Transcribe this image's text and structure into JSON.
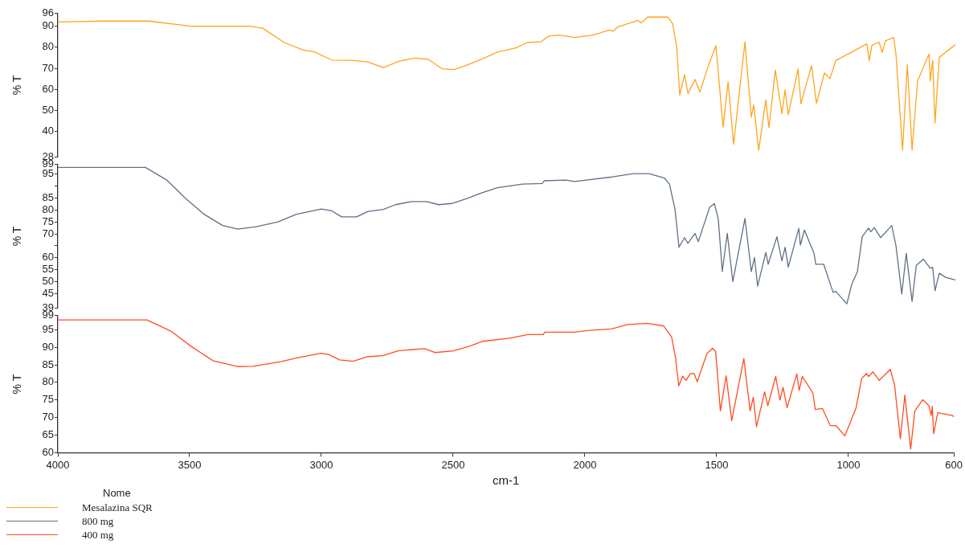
{
  "chart_data": [
    {
      "type": "line",
      "ylabel": "% T",
      "xlim": [
        4000,
        600
      ],
      "ylim": [
        28,
        96
      ],
      "yticks": [
        28,
        40,
        50,
        60,
        70,
        80,
        90,
        96
      ],
      "tick_labels": "y",
      "legend": "bottom left",
      "legend_title": "Nome",
      "series": [
        {
          "name": "Mesalazina SQR",
          "color": "#ffa51c",
          "x": [
            4000,
            3833,
            3656,
            3495,
            3271,
            3224,
            3142,
            3072,
            3026,
            2962,
            2886,
            2825,
            2767,
            2709,
            2651,
            2597,
            2545,
            2499,
            2451,
            2393,
            2335,
            2265,
            2222,
            2170,
            2140,
            2100,
            2042,
            1972,
            1911,
            1896,
            1878,
            1802,
            1790,
            1766,
            1690,
            1671,
            1656,
            1644,
            1626,
            1613,
            1586,
            1568,
            1531,
            1507,
            1480,
            1461,
            1440,
            1397,
            1373,
            1364,
            1345,
            1318,
            1306,
            1282,
            1257,
            1245,
            1233,
            1196,
            1185,
            1145,
            1126,
            1096,
            1075,
            1053,
            935,
            926,
            916,
            889,
            877,
            865,
            834,
            825,
            800,
            782,
            764,
            743,
            700,
            695,
            686,
            677,
            661,
            600
          ],
          "values": [
            92,
            92.4,
            92.4,
            90,
            90,
            89,
            82.2,
            78.7,
            77.7,
            73.9,
            73.8,
            73,
            70.3,
            73.3,
            74.8,
            74.3,
            69.8,
            69.4,
            71.5,
            74.4,
            77.7,
            79.7,
            82.2,
            82.6,
            85.3,
            85.8,
            84.6,
            85.8,
            88.2,
            87.6,
            89.7,
            92.7,
            91.5,
            94.3,
            94.3,
            91.2,
            80.5,
            57.3,
            67,
            58,
            64.7,
            58.8,
            72.9,
            80.7,
            42.1,
            63.5,
            34,
            82.6,
            46.8,
            52.7,
            31.2,
            55,
            41.8,
            69.2,
            48.4,
            59.8,
            48,
            69.7,
            53.2,
            71.3,
            53.4,
            67.8,
            65.1,
            73.7,
            81.6,
            73.7,
            81,
            82.4,
            77.5,
            83,
            84.6,
            76.8,
            31.2,
            71.7,
            31.2,
            64,
            76.8,
            64,
            73.7,
            44.1,
            75.2,
            81.2
          ]
        }
      ]
    },
    {
      "type": "line",
      "ylabel": "% T",
      "xlim": [
        4000,
        600
      ],
      "ylim": [
        39,
        99
      ],
      "yticks": [
        39,
        45,
        50,
        55,
        60,
        {
          "value": 65,
          "label": null
        },
        70,
        75,
        80,
        85,
        {
          "value": 90,
          "label": null
        },
        95,
        99
      ],
      "tick_labels": "y",
      "legend": "bottom left",
      "series": [
        {
          "name": "800 mg",
          "color": "#5f7186",
          "x": [
            4000,
            3668,
            3586,
            3516,
            3446,
            3376,
            3318,
            3248,
            3166,
            3096,
            3002,
            2962,
            2925,
            2868,
            2825,
            2767,
            2721,
            2661,
            2603,
            2557,
            2508,
            2451,
            2393,
            2335,
            2241,
            2165,
            2158,
            2076,
            2042,
            1902,
            1820,
            1760,
            1702,
            1683,
            1662,
            1647,
            1626,
            1613,
            1586,
            1574,
            1531,
            1513,
            1498,
            1483,
            1464,
            1443,
            1397,
            1373,
            1361,
            1349,
            1318,
            1309,
            1276,
            1257,
            1245,
            1233,
            1193,
            1187,
            1172,
            1135,
            1129,
            1099,
            1063,
            1053,
            1011,
            993,
            971,
            953,
            929,
            920,
            907,
            883,
            841,
            825,
            803,
            786,
            764,
            748,
            721,
            695,
            686,
            677,
            661,
            637,
            600
          ],
          "values": [
            97.8,
            97.8,
            92.4,
            84.8,
            78.2,
            73.5,
            72,
            73,
            75,
            78.2,
            80.4,
            79.6,
            77.1,
            77.1,
            79.4,
            80.2,
            82.2,
            83.5,
            83.5,
            82.2,
            82.7,
            84.8,
            87.2,
            89.3,
            90.8,
            91.1,
            92.2,
            92.5,
            91.9,
            93.8,
            95.2,
            95.2,
            93.3,
            90.8,
            80.3,
            64.4,
            68.4,
            66,
            70.2,
            66.7,
            81,
            82.7,
            76.1,
            54.2,
            70.2,
            50,
            76.4,
            54.2,
            60.1,
            48.1,
            62.2,
            57.3,
            68.8,
            58.7,
            64.4,
            56.1,
            72.3,
            65.3,
            71.6,
            61.8,
            57.3,
            57.3,
            45.5,
            45.9,
            40.7,
            48.7,
            54.2,
            68.8,
            72.4,
            70.9,
            72.6,
            68.4,
            73.5,
            65,
            44.8,
            61.8,
            41.7,
            56.8,
            59.4,
            55.6,
            56,
            46.2,
            53.5,
            51.8,
            50.7
          ]
        }
      ]
    },
    {
      "type": "line",
      "xlabel": "cm-1",
      "ylabel": "% T",
      "xlim": [
        4000,
        600
      ],
      "xticks": [
        4000,
        3500,
        3000,
        2500,
        2000,
        1500,
        1000,
        600
      ],
      "ylim": [
        60,
        99
      ],
      "yticks": [
        60,
        65,
        70,
        75,
        80,
        85,
        90,
        95,
        99
      ],
      "legend": "bottom left",
      "series": [
        {
          "name": "400 mg",
          "color": "#ff4d1f",
          "x": [
            4000,
            3662,
            3571,
            3495,
            3412,
            3318,
            3260,
            3154,
            3096,
            3002,
            2971,
            2931,
            2880,
            2825,
            2767,
            2709,
            2661,
            2609,
            2569,
            2499,
            2438,
            2387,
            2286,
            2216,
            2158,
            2152,
            2042,
            1982,
            1899,
            1841,
            1766,
            1702,
            1671,
            1656,
            1644,
            1629,
            1616,
            1601,
            1586,
            1574,
            1537,
            1516,
            1504,
            1486,
            1464,
            1443,
            1397,
            1373,
            1361,
            1349,
            1318,
            1306,
            1276,
            1260,
            1248,
            1233,
            1196,
            1187,
            1175,
            1135,
            1126,
            1099,
            1069,
            1047,
            1014,
            993,
            971,
            950,
            932,
            923,
            907,
            883,
            841,
            825,
            803,
            786,
            764,
            748,
            718,
            695,
            686,
            682,
            677,
            661,
            606,
            600
          ],
          "values": [
            97.8,
            97.8,
            94.6,
            90.3,
            86.2,
            84.5,
            84.6,
            85.9,
            86.9,
            88.3,
            87.9,
            86.4,
            86,
            87.3,
            87.6,
            89,
            89.3,
            89.6,
            88.5,
            89,
            90.3,
            91.7,
            92.6,
            93.6,
            93.6,
            94.3,
            94.3,
            94.8,
            95.2,
            96.4,
            96.8,
            96.1,
            92.9,
            86.9,
            79,
            81.8,
            80.6,
            82.4,
            82.6,
            80.2,
            88.2,
            89.7,
            88.8,
            71.9,
            81.9,
            69.1,
            86.8,
            71.9,
            75.8,
            67.4,
            77.3,
            73.4,
            81.7,
            75,
            78.6,
            72.8,
            82.4,
            77.7,
            81.7,
            77,
            72.3,
            72.6,
            67.7,
            67.7,
            64.8,
            68.6,
            72.8,
            81.1,
            82.5,
            81.7,
            83,
            80.6,
            83.7,
            79.2,
            64,
            76.4,
            61.1,
            71.9,
            75.1,
            73.4,
            70.6,
            73.2,
            65.4,
            71.4,
            70.6,
            70.2
          ]
        }
      ]
    }
  ]
}
